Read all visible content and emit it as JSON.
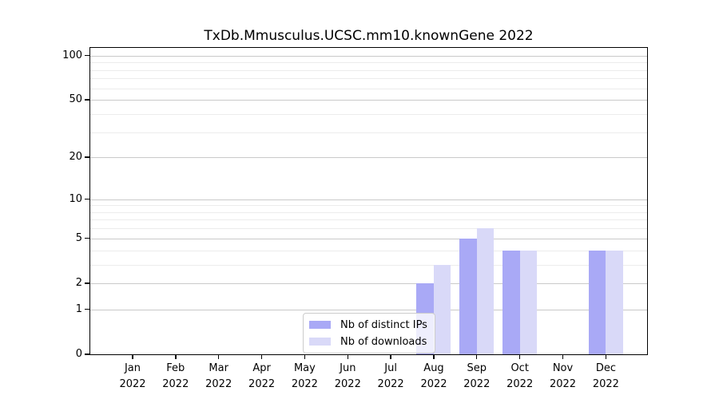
{
  "title": "TxDb.Mmusculus.UCSC.mm10.knownGene 2022",
  "chart_data": {
    "type": "bar",
    "title": "TxDb.Mmusculus.UCSC.mm10.knownGene 2022",
    "categories": [
      "Jan 2022",
      "Feb 2022",
      "Mar 2022",
      "Apr 2022",
      "May 2022",
      "Jun 2022",
      "Jul 2022",
      "Aug 2022",
      "Sep 2022",
      "Oct 2022",
      "Nov 2022",
      "Dec 2022"
    ],
    "series": [
      {
        "name": "Nb of distinct IPs",
        "color": "#a9a9f6",
        "values": [
          0,
          0,
          0,
          0,
          0,
          0,
          0,
          2,
          5,
          4,
          0,
          4
        ]
      },
      {
        "name": "Nb of downloads",
        "color": "#d9d9f8",
        "values": [
          0,
          0,
          0,
          0,
          0,
          0,
          0,
          3,
          6,
          4,
          0,
          4
        ]
      }
    ],
    "xlabel": "",
    "ylabel": "",
    "y_scale": "log1p",
    "y_ticks": [
      0,
      1,
      2,
      5,
      10,
      20,
      50,
      100
    ],
    "y_minor_ticks": [
      3,
      4,
      6,
      7,
      8,
      9,
      30,
      40,
      60,
      70,
      80,
      90
    ],
    "ylim": [
      0,
      115
    ],
    "grid": "horizontal",
    "legend_position": "inside-bottom-center"
  },
  "legend": {
    "items": [
      {
        "label": "Nb of distinct IPs",
        "color": "#a9a9f6"
      },
      {
        "label": "Nb of downloads",
        "color": "#d9d9f8"
      }
    ]
  },
  "style": {
    "major_grid_color": "#c9c9c9",
    "minor_grid_color": "#ececec",
    "axis_color": "#000000",
    "background": "#ffffff"
  }
}
